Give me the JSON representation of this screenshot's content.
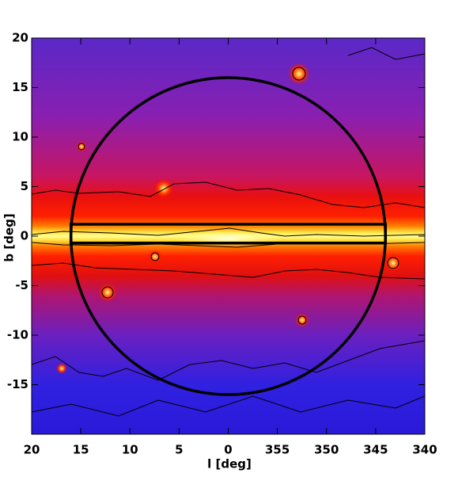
{
  "chart_data": {
    "type": "image",
    "xlabel": "l [deg]",
    "ylabel": "b [deg]",
    "xlim": [
      20,
      -20
    ],
    "ylim": [
      -20,
      20
    ],
    "xticks": [
      20,
      15,
      10,
      5,
      0,
      {
        "value": -5,
        "label": "355"
      },
      {
        "value": -10,
        "label": "350"
      },
      {
        "value": -15,
        "label": "345"
      },
      {
        "value": -20,
        "label": "340"
      }
    ],
    "yticks": [
      20,
      15,
      10,
      5,
      0,
      -5,
      -10,
      -15
    ],
    "regions": {
      "circle": {
        "center": [
          0,
          0
        ],
        "radius": 16
      },
      "box": {
        "lrange": [
          16,
          -16
        ],
        "brange": [
          -0.7,
          1.2
        ]
      }
    }
  }
}
